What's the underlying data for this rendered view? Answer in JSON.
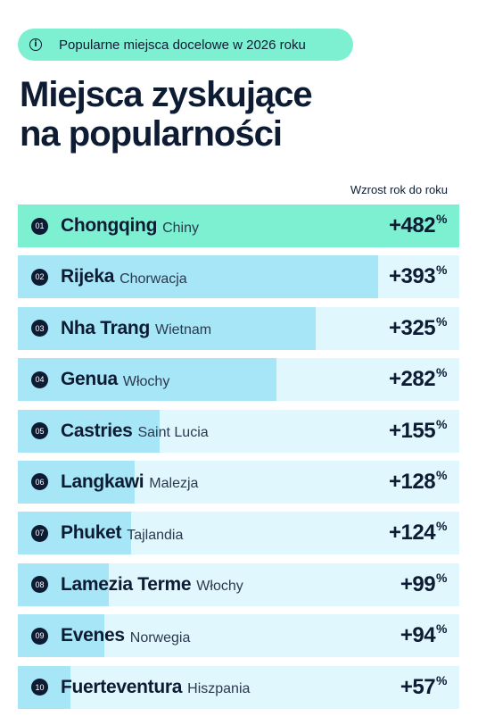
{
  "badge": {
    "icon": "info-icon",
    "text": "Popularne miejsca docelowe w 2026 roku"
  },
  "title": {
    "line1": "Miejsca zyskujące",
    "line2": "na popularności"
  },
  "chart_data": {
    "type": "bar",
    "orientation": "horizontal",
    "column_header": "Wzrost rok do roku",
    "unit": "%",
    "max": 482,
    "colors": {
      "first": "#7ef0d2",
      "bar": "#a6e6f7",
      "track": "#e0f7fd",
      "text": "#0d1b33"
    },
    "rows": [
      {
        "rank": "01",
        "city": "Chongqing",
        "country": "Chiny",
        "value": 482,
        "label": "+482"
      },
      {
        "rank": "02",
        "city": "Rijeka",
        "country": "Chorwacja",
        "value": 393,
        "label": "+393"
      },
      {
        "rank": "03",
        "city": "Nha Trang",
        "country": "Wietnam",
        "value": 325,
        "label": "+325"
      },
      {
        "rank": "04",
        "city": "Genua",
        "country": "Włochy",
        "value": 282,
        "label": "+282"
      },
      {
        "rank": "05",
        "city": "Castries",
        "country": "Saint Lucia",
        "value": 155,
        "label": "+155"
      },
      {
        "rank": "06",
        "city": "Langkawi",
        "country": "Malezja",
        "value": 128,
        "label": "+128"
      },
      {
        "rank": "07",
        "city": "Phuket",
        "country": "Tajlandia",
        "value": 124,
        "label": "+124"
      },
      {
        "rank": "08",
        "city": "Lamezia Terme",
        "country": "Włochy",
        "value": 99,
        "label": "+99"
      },
      {
        "rank": "09",
        "city": "Evenes",
        "country": "Norwegia",
        "value": 94,
        "label": "+94"
      },
      {
        "rank": "10",
        "city": "Fuerteventura",
        "country": "Hiszpania",
        "value": 57,
        "label": "+57"
      }
    ]
  }
}
